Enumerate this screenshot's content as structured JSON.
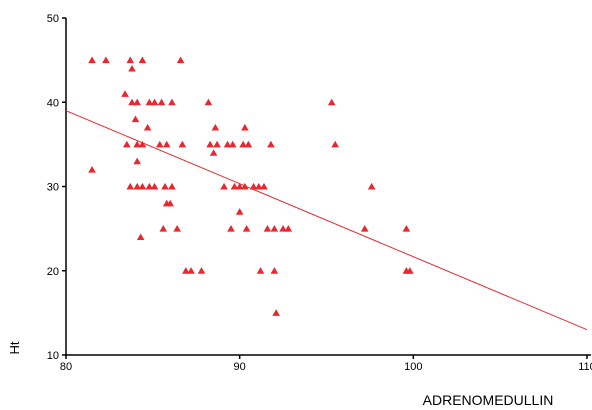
{
  "chart_data": {
    "type": "scatter",
    "title": "",
    "xlabel": "ADRENOMEDULLIN",
    "ylabel": "Ht",
    "xlim": [
      80,
      110
    ],
    "ylim": [
      10,
      50
    ],
    "x_ticks": [
      "80",
      "90",
      "100",
      "110"
    ],
    "y_ticks": [
      "10",
      "20",
      "30",
      "40",
      "50"
    ],
    "grid": false,
    "colors": {
      "points": "#e8282e",
      "fit_line": "#e8282e",
      "axis": "#000000"
    },
    "marker": "triangle",
    "fit_line": {
      "x": [
        80,
        110
      ],
      "y": [
        39,
        13
      ]
    },
    "points": [
      {
        "x": 81.5,
        "y": 45
      },
      {
        "x": 82.3,
        "y": 45
      },
      {
        "x": 83.7,
        "y": 45
      },
      {
        "x": 84.4,
        "y": 45
      },
      {
        "x": 86.6,
        "y": 45
      },
      {
        "x": 83.8,
        "y": 44
      },
      {
        "x": 83.4,
        "y": 41
      },
      {
        "x": 83.8,
        "y": 40
      },
      {
        "x": 84.1,
        "y": 40
      },
      {
        "x": 84.8,
        "y": 40
      },
      {
        "x": 85.1,
        "y": 40
      },
      {
        "x": 85.5,
        "y": 40
      },
      {
        "x": 86.1,
        "y": 40
      },
      {
        "x": 88.2,
        "y": 40
      },
      {
        "x": 95.3,
        "y": 40
      },
      {
        "x": 84.0,
        "y": 38
      },
      {
        "x": 84.7,
        "y": 37
      },
      {
        "x": 88.6,
        "y": 37
      },
      {
        "x": 90.3,
        "y": 37
      },
      {
        "x": 83.5,
        "y": 35
      },
      {
        "x": 84.1,
        "y": 35
      },
      {
        "x": 84.4,
        "y": 35
      },
      {
        "x": 85.4,
        "y": 35
      },
      {
        "x": 85.8,
        "y": 35
      },
      {
        "x": 86.7,
        "y": 35
      },
      {
        "x": 88.3,
        "y": 35
      },
      {
        "x": 88.7,
        "y": 35
      },
      {
        "x": 89.3,
        "y": 35
      },
      {
        "x": 89.6,
        "y": 35
      },
      {
        "x": 90.2,
        "y": 35
      },
      {
        "x": 90.5,
        "y": 35
      },
      {
        "x": 91.8,
        "y": 35
      },
      {
        "x": 95.5,
        "y": 35
      },
      {
        "x": 88.5,
        "y": 34
      },
      {
        "x": 84.1,
        "y": 33
      },
      {
        "x": 81.5,
        "y": 32
      },
      {
        "x": 83.7,
        "y": 30
      },
      {
        "x": 84.1,
        "y": 30
      },
      {
        "x": 84.4,
        "y": 30
      },
      {
        "x": 84.8,
        "y": 30
      },
      {
        "x": 85.1,
        "y": 30
      },
      {
        "x": 85.7,
        "y": 30
      },
      {
        "x": 86.1,
        "y": 30
      },
      {
        "x": 89.1,
        "y": 30
      },
      {
        "x": 89.7,
        "y": 30
      },
      {
        "x": 90.0,
        "y": 30
      },
      {
        "x": 90.3,
        "y": 30
      },
      {
        "x": 90.8,
        "y": 30
      },
      {
        "x": 91.1,
        "y": 30
      },
      {
        "x": 91.4,
        "y": 30
      },
      {
        "x": 97.6,
        "y": 30
      },
      {
        "x": 85.8,
        "y": 28
      },
      {
        "x": 86.0,
        "y": 28
      },
      {
        "x": 90.0,
        "y": 27
      },
      {
        "x": 85.6,
        "y": 25
      },
      {
        "x": 86.4,
        "y": 25
      },
      {
        "x": 89.5,
        "y": 25
      },
      {
        "x": 90.4,
        "y": 25
      },
      {
        "x": 91.6,
        "y": 25
      },
      {
        "x": 92.0,
        "y": 25
      },
      {
        "x": 92.5,
        "y": 25
      },
      {
        "x": 92.8,
        "y": 25
      },
      {
        "x": 97.2,
        "y": 25
      },
      {
        "x": 99.6,
        "y": 25
      },
      {
        "x": 84.3,
        "y": 24
      },
      {
        "x": 86.9,
        "y": 20
      },
      {
        "x": 87.2,
        "y": 20
      },
      {
        "x": 87.8,
        "y": 20
      },
      {
        "x": 91.2,
        "y": 20
      },
      {
        "x": 92.0,
        "y": 20
      },
      {
        "x": 99.6,
        "y": 20
      },
      {
        "x": 99.8,
        "y": 20
      },
      {
        "x": 92.1,
        "y": 15
      }
    ]
  }
}
